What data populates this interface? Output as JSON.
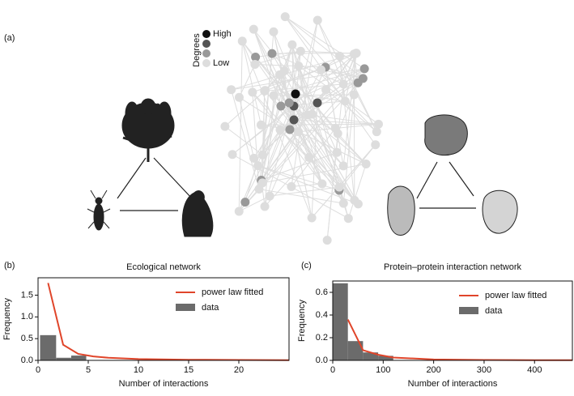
{
  "figure": {
    "panel_label": "(a)",
    "legend_title": "Degrees",
    "legend_high": "High",
    "legend_low": "Low"
  },
  "chart_data": [
    {
      "type": "histogram",
      "panel_label": "(b)",
      "title": "Ecological network",
      "x_label": "Number of interactions",
      "y_label": "Frequency",
      "xlim": [
        0,
        25
      ],
      "ylim": [
        0,
        1.9
      ],
      "xticks": [
        0,
        5,
        10,
        15,
        20
      ],
      "yticks": [
        {
          "value": 0,
          "label": "0.0"
        },
        0.5,
        {
          "value": 1,
          "label": "1.0"
        },
        1.5
      ],
      "legend": "upper right",
      "hist": {
        "name": "data",
        "color": "#6b6b6b",
        "bins": [
          0.2,
          1.8,
          3.3,
          4.8
        ],
        "values": [
          0.58,
          0.06,
          0.11
        ]
      },
      "fit": {
        "name": "power law fitted",
        "color": "#e0452a",
        "x": [
          1,
          2.5,
          4,
          5.5,
          7,
          10,
          15,
          20,
          25
        ],
        "values": [
          1.78,
          0.36,
          0.15,
          0.09,
          0.06,
          0.03,
          0.015,
          0.01,
          0.005
        ]
      }
    },
    {
      "type": "histogram",
      "panel_label": "(c)",
      "title": "Protein–protein interaction network",
      "x_label": "Number of interactions",
      "y_label": "Frequency",
      "xlim": [
        0,
        475
      ],
      "ylim": [
        0,
        0.7
      ],
      "xticks": [
        0,
        100,
        200,
        300,
        400
      ],
      "yticks": [
        {
          "value": 0,
          "label": "0.0"
        },
        0.2,
        0.4,
        0.6
      ],
      "legend": "upper right",
      "hist": {
        "name": "data",
        "color": "#6b6b6b",
        "bins": [
          0,
          30,
          60,
          90,
          120
        ],
        "values": [
          0.68,
          0.17,
          0.07,
          0.04
        ]
      },
      "fit": {
        "name": "power law fitted",
        "color": "#e0452a",
        "x": [
          30,
          60,
          90,
          120,
          200,
          300,
          400,
          475
        ],
        "values": [
          0.36,
          0.09,
          0.05,
          0.025,
          0.008,
          0.0036,
          0.002,
          0.0014
        ]
      }
    }
  ]
}
